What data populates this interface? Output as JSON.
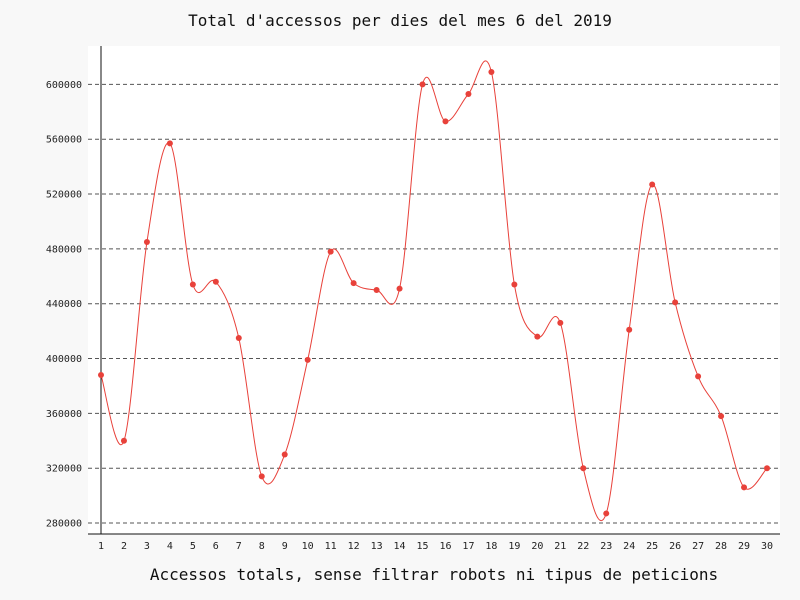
{
  "chart_data": {
    "type": "line",
    "title": "Total d'accessos per dies del mes 6 del 2019",
    "xlabel": "Accessos totals, sense filtrar robots ni tipus de peticions",
    "ylabel": "",
    "x": [
      1,
      2,
      3,
      4,
      5,
      6,
      7,
      8,
      9,
      10,
      11,
      12,
      13,
      14,
      15,
      16,
      17,
      18,
      19,
      20,
      21,
      22,
      23,
      24,
      25,
      26,
      27,
      28,
      29,
      30
    ],
    "values": [
      388000,
      340000,
      485000,
      557000,
      454000,
      456000,
      415000,
      314000,
      330000,
      399000,
      478000,
      455000,
      450000,
      451000,
      600000,
      573000,
      593000,
      609000,
      454000,
      416000,
      426000,
      320000,
      287000,
      421000,
      527000,
      441000,
      387000,
      358000,
      306000,
      320000
    ],
    "yticks": [
      280000,
      320000,
      360000,
      400000,
      440000,
      480000,
      520000,
      560000,
      600000
    ],
    "ylim": [
      272000,
      628000
    ],
    "xlim": [
      1,
      30
    ],
    "grid": true,
    "colors": {
      "line": "#e8413a",
      "point": "#e8413a",
      "background": "#ffffff"
    }
  }
}
